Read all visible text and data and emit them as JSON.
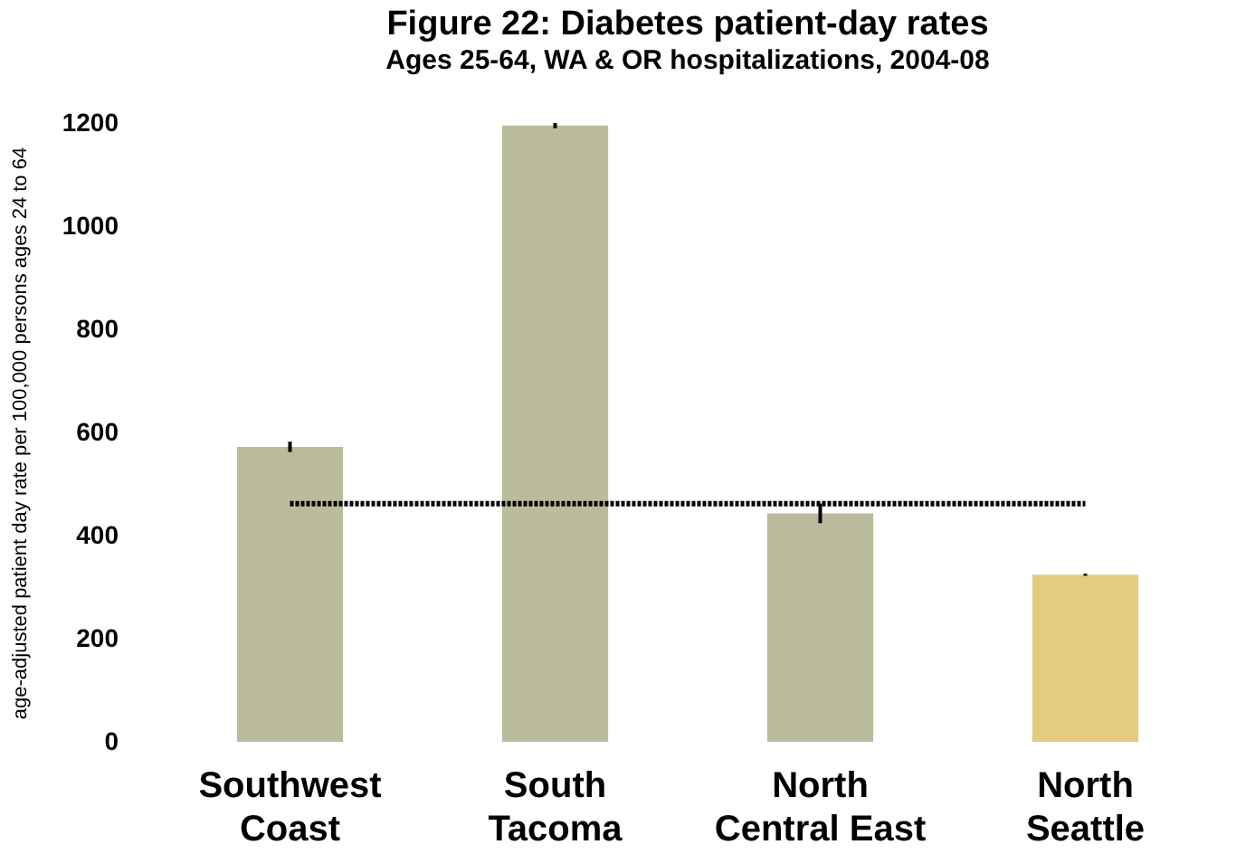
{
  "chart_data": {
    "type": "bar",
    "title": "Figure 22: Diabetes patient-day rates",
    "subtitle": "Ages 25-64, WA & OR hospitalizations, 2004-08",
    "ylabel": "age-adjusted patient day rate per 100,000 persons ages 24 to 64",
    "categories": [
      "Southwest Coast",
      "South Tacoma",
      "North Central East",
      "North Seattle"
    ],
    "values": [
      572,
      1195,
      443,
      324
    ],
    "colors": [
      "#bbbc9c",
      "#bbbc9c",
      "#bbbc9c",
      "#e4cb7e"
    ],
    "errors": [
      10,
      5,
      19,
      2
    ],
    "ylim": [
      0,
      1200
    ],
    "yticks": [
      0,
      200,
      400,
      600,
      800,
      1000,
      1200
    ],
    "ref_lines": [
      {
        "axis": "y",
        "value": 462,
        "color": "#000000",
        "line_style": "dotted"
      }
    ],
    "grid": false
  }
}
